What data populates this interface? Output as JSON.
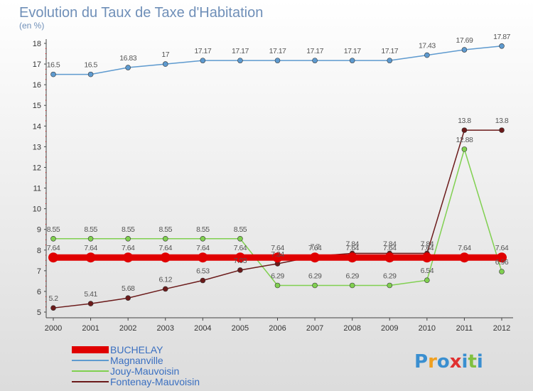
{
  "chart_data": {
    "type": "line",
    "title": "Evolution du Taux de Taxe d'Habitation",
    "subtitle": "(en %)",
    "x": [
      "2000",
      "2001",
      "2002",
      "2003",
      "2004",
      "2005",
      "2006",
      "2007",
      "2008",
      "2009",
      "2010",
      "2011",
      "2012"
    ],
    "ylim": [
      5,
      18
    ],
    "yticks": [
      5,
      6,
      7,
      8,
      9,
      10,
      11,
      12,
      13,
      14,
      15,
      16,
      17,
      18
    ],
    "grid": false,
    "legend_position": "bottom-left",
    "series": [
      {
        "name": "BUCHELAY",
        "color": "#e00000",
        "values": [
          7.64,
          7.64,
          7.64,
          7.64,
          7.64,
          7.64,
          7.64,
          7.64,
          7.64,
          7.64,
          7.64,
          7.64,
          7.64
        ]
      },
      {
        "name": "Magnanville",
        "color": "#5e9acf",
        "values": [
          16.5,
          16.5,
          16.83,
          17,
          17.17,
          17.17,
          17.17,
          17.17,
          17.17,
          17.17,
          17.43,
          17.69,
          17.87
        ]
      },
      {
        "name": "Jouy-Mauvoisin",
        "color": "#80d050",
        "values": [
          8.55,
          8.55,
          8.55,
          8.55,
          8.55,
          8.55,
          6.29,
          6.29,
          6.29,
          6.29,
          6.54,
          12.88,
          6.96
        ]
      },
      {
        "name": "Fontenay-Mauvoisin",
        "color": "#6b1a1a",
        "values": [
          5.2,
          5.41,
          5.68,
          6.12,
          6.53,
          7.03,
          7.34,
          7.7,
          7.84,
          7.84,
          7.84,
          13.8,
          13.8
        ]
      }
    ]
  },
  "logo": {
    "text": "Proxiti",
    "letters": [
      "P",
      "r",
      "o",
      "x",
      "i",
      "t",
      "i"
    ],
    "colors": [
      "#3a8fd0",
      "#f0a020",
      "#3a8fd0",
      "#e03030",
      "#3a8fd0",
      "#80c040",
      "#3a8fd0"
    ]
  }
}
